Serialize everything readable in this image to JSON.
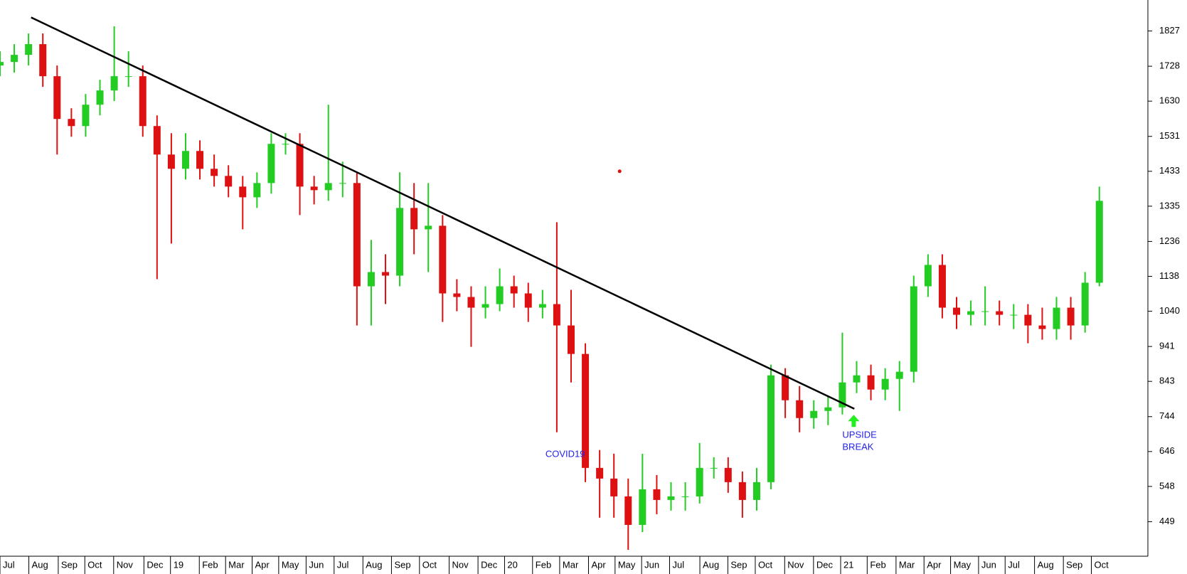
{
  "chart_data": {
    "type": "candlestick",
    "up_color": "#22cc22",
    "down_color": "#dd1111",
    "x": [
      0,
      0.5,
      1,
      1.5,
      2,
      2.5,
      3,
      3.5,
      4,
      4.5,
      5,
      5.5,
      6,
      6.5,
      7,
      7.5,
      8,
      8.5,
      9,
      9.5,
      10,
      10.5,
      11,
      11.5,
      12,
      12.5,
      13,
      13.5,
      14,
      14.5,
      15,
      15.5,
      16,
      16.5,
      17,
      17.5,
      18,
      18.5,
      19,
      19.5,
      20,
      20.5,
      21,
      21.5,
      22,
      22.5,
      23,
      23.5,
      24,
      24.5,
      25,
      25.5,
      26,
      26.5,
      27,
      27.5,
      28,
      28.5,
      29,
      29.5,
      30,
      30.5,
      31,
      31.5,
      32,
      32.5,
      33,
      33.5,
      34,
      34.5,
      35,
      35.5,
      36,
      36.5,
      37,
      37.5,
      38,
      38.5
    ],
    "open": [
      1730,
      1740,
      1760,
      1790,
      1700,
      1580,
      1560,
      1620,
      1660,
      1700,
      1700,
      1560,
      1480,
      1440,
      1490,
      1440,
      1420,
      1390,
      1360,
      1400,
      1510,
      1510,
      1390,
      1380,
      1400,
      1400,
      1110,
      1150,
      1140,
      1330,
      1270,
      1280,
      1090,
      1080,
      1050,
      1060,
      1110,
      1090,
      1050,
      1060,
      1000,
      920,
      600,
      570,
      520,
      440,
      540,
      510,
      520,
      520,
      600,
      600,
      560,
      510,
      560,
      860,
      790,
      740,
      760,
      770,
      840,
      860,
      820,
      850,
      870,
      1110,
      1170,
      1050,
      1030,
      1040,
      1040,
      1030,
      1030,
      1000,
      990,
      1050,
      1000,
      1120
    ],
    "close": [
      1740,
      1760,
      1790,
      1700,
      1580,
      1560,
      1620,
      1660,
      1700,
      1700,
      1560,
      1480,
      1440,
      1490,
      1440,
      1420,
      1390,
      1360,
      1400,
      1510,
      1510,
      1390,
      1380,
      1400,
      1400,
      1110,
      1150,
      1140,
      1330,
      1270,
      1280,
      1090,
      1080,
      1050,
      1060,
      1110,
      1090,
      1050,
      1060,
      1000,
      920,
      600,
      570,
      520,
      440,
      540,
      510,
      520,
      520,
      600,
      600,
      560,
      510,
      560,
      860,
      790,
      740,
      760,
      770,
      840,
      860,
      820,
      850,
      870,
      1110,
      1170,
      1050,
      1030,
      1040,
      1040,
      1030,
      1030,
      1000,
      990,
      1050,
      1000,
      1120,
      1350
    ],
    "high": [
      1770,
      1790,
      1820,
      1820,
      1730,
      1610,
      1650,
      1690,
      1840,
      1770,
      1730,
      1590,
      1540,
      1540,
      1520,
      1480,
      1450,
      1420,
      1430,
      1540,
      1540,
      1540,
      1420,
      1620,
      1460,
      1430,
      1240,
      1200,
      1430,
      1400,
      1400,
      1310,
      1130,
      1110,
      1110,
      1160,
      1140,
      1120,
      1100,
      1290,
      1100,
      950,
      650,
      640,
      570,
      640,
      580,
      560,
      560,
      670,
      630,
      630,
      590,
      600,
      890,
      880,
      830,
      790,
      800,
      980,
      900,
      890,
      880,
      900,
      1140,
      1200,
      1200,
      1080,
      1070,
      1110,
      1070,
      1060,
      1060,
      1050,
      1080,
      1080,
      1150,
      1390
    ],
    "low": [
      1700,
      1710,
      1730,
      1670,
      1480,
      1530,
      1530,
      1590,
      1630,
      1670,
      1530,
      1130,
      1230,
      1410,
      1410,
      1390,
      1360,
      1270,
      1330,
      1370,
      1480,
      1310,
      1340,
      1350,
      1360,
      1000,
      1000,
      1060,
      1110,
      1200,
      1150,
      1010,
      1040,
      940,
      1020,
      1040,
      1050,
      1010,
      1020,
      700,
      840,
      560,
      460,
      460,
      370,
      420,
      470,
      480,
      480,
      500,
      570,
      530,
      460,
      480,
      540,
      740,
      700,
      710,
      720,
      750,
      810,
      790,
      790,
      760,
      840,
      1080,
      1020,
      990,
      1000,
      1000,
      1000,
      990,
      950,
      960,
      960,
      960,
      980,
      1110
    ],
    "xlim": [
      0,
      40.2
    ],
    "ylim": [
      352,
      1914
    ],
    "yticks": [
      449,
      548,
      646,
      744,
      843,
      941,
      1040,
      1138,
      1236,
      1335,
      1433,
      1531,
      1630,
      1728,
      1827
    ],
    "xticks": [
      {
        "value": 0,
        "label": "Jul"
      },
      {
        "value": 1.01,
        "label": "Aug"
      },
      {
        "value": 2.04,
        "label": "Sep"
      },
      {
        "value": 2.97,
        "label": "Oct"
      },
      {
        "value": 3.98,
        "label": "Nov"
      },
      {
        "value": 5.04,
        "label": "Dec"
      },
      {
        "value": 5.97,
        "label": "19"
      },
      {
        "value": 6.98,
        "label": "Feb"
      },
      {
        "value": 7.9,
        "label": "Mar"
      },
      {
        "value": 8.83,
        "label": "Apr"
      },
      {
        "value": 9.76,
        "label": "May"
      },
      {
        "value": 10.72,
        "label": "Jun"
      },
      {
        "value": 11.7,
        "label": "Jul"
      },
      {
        "value": 12.71,
        "label": "Aug"
      },
      {
        "value": 13.71,
        "label": "Sep"
      },
      {
        "value": 14.69,
        "label": "Oct"
      },
      {
        "value": 15.73,
        "label": "Nov"
      },
      {
        "value": 16.74,
        "label": "Dec"
      },
      {
        "value": 17.67,
        "label": "20"
      },
      {
        "value": 18.65,
        "label": "Feb"
      },
      {
        "value": 19.6,
        "label": "Mar"
      },
      {
        "value": 20.61,
        "label": "Apr"
      },
      {
        "value": 21.54,
        "label": "May"
      },
      {
        "value": 22.47,
        "label": "Jun"
      },
      {
        "value": 23.45,
        "label": "Jul"
      },
      {
        "value": 24.51,
        "label": "Aug"
      },
      {
        "value": 25.49,
        "label": "Sep"
      },
      {
        "value": 26.45,
        "label": "Oct"
      },
      {
        "value": 27.48,
        "label": "Nov"
      },
      {
        "value": 28.49,
        "label": "Dec"
      },
      {
        "value": 29.44,
        "label": "21"
      },
      {
        "value": 30.37,
        "label": "Feb"
      },
      {
        "value": 31.38,
        "label": "Mar"
      },
      {
        "value": 32.36,
        "label": "Apr"
      },
      {
        "value": 33.29,
        "label": "May"
      },
      {
        "value": 34.27,
        "label": "Jun"
      },
      {
        "value": 35.2,
        "label": "Jul"
      },
      {
        "value": 36.23,
        "label": "Aug"
      },
      {
        "value": 37.24,
        "label": "Sep"
      },
      {
        "value": 38.22,
        "label": "Oct"
      }
    ],
    "trendline": {
      "x": [
        1.09,
        29.92
      ],
      "y": [
        1865,
        766
      ],
      "color": "#000000"
    },
    "marker": {
      "x": 21.7,
      "y": 1433,
      "color": "#dd1111"
    },
    "annotations": [
      {
        "lines": [
          "COVID19"
        ],
        "x": 19.1,
        "y": 638,
        "color": "#2222ee"
      },
      {
        "lines": [
          "UPSIDE",
          "BREAK"
        ],
        "x": 29.5,
        "y": 691,
        "color": "#2222ee",
        "arrow_color": "#22ee22"
      }
    ]
  }
}
